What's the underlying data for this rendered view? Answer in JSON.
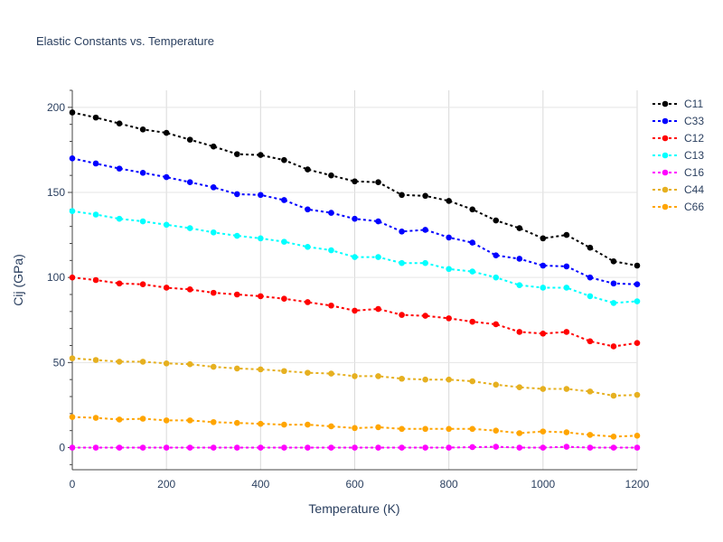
{
  "chart_data": {
    "type": "line",
    "title": "Elastic Constants vs. Temperature",
    "xlabel": "Temperature (K)",
    "ylabel": "Cij (GPa)",
    "xlim": [
      0,
      1200
    ],
    "ylim": [
      -13,
      210
    ],
    "xticks": [
      0,
      200,
      400,
      600,
      800,
      1000,
      1200
    ],
    "yticks": [
      0,
      50,
      100,
      150,
      200
    ],
    "grid": true,
    "legend_position": "top-right",
    "x": [
      0,
      50,
      100,
      150,
      200,
      250,
      300,
      350,
      400,
      450,
      500,
      550,
      600,
      650,
      700,
      750,
      800,
      850,
      900,
      950,
      1000,
      1050,
      1100,
      1150,
      1200
    ],
    "series": [
      {
        "name": "C11",
        "color": "#000000",
        "values": [
          197,
          194,
          190.5,
          187,
          185,
          181,
          177,
          172.5,
          172,
          169,
          163.5,
          160,
          156.5,
          156,
          148.5,
          148,
          145,
          140,
          133.5,
          129,
          123,
          125,
          117.5,
          109.5,
          107
        ]
      },
      {
        "name": "C33",
        "color": "#0000ff",
        "values": [
          170,
          167,
          164,
          161.5,
          159,
          156,
          153,
          149,
          148.5,
          145.5,
          140,
          138,
          134.5,
          133,
          127,
          128,
          123.5,
          120.5,
          113,
          111,
          107,
          106.5,
          100,
          96.5,
          96
        ]
      },
      {
        "name": "C12",
        "color": "#ff0000",
        "values": [
          100,
          98.5,
          96.5,
          96,
          94,
          93,
          91,
          90,
          89,
          87.5,
          85.5,
          83.5,
          80.5,
          81.5,
          78,
          77.5,
          76,
          74,
          72.5,
          68,
          67,
          68,
          62.5,
          59.5,
          61.5
        ]
      },
      {
        "name": "C13",
        "color": "#00ffff",
        "values": [
          139,
          137,
          134.5,
          133,
          131,
          129,
          126.5,
          124.5,
          123,
          121,
          118,
          116,
          112,
          112,
          108.5,
          108.5,
          105,
          103.5,
          100,
          95.5,
          94,
          94,
          89,
          85,
          86
        ]
      },
      {
        "name": "C16",
        "color": "#ff00ff",
        "values": [
          0,
          0,
          0,
          0,
          0,
          0,
          0,
          0,
          0,
          0,
          0,
          0,
          0,
          0,
          0,
          0,
          0,
          0.3,
          0.5,
          0,
          0,
          0.5,
          0,
          0,
          0
        ]
      },
      {
        "name": "C44",
        "color": "#e6b020",
        "values": [
          52.5,
          51.5,
          50.5,
          50.5,
          49.5,
          49,
          47.5,
          46.5,
          46,
          45,
          44,
          43.5,
          42,
          42,
          40.5,
          40,
          40,
          39,
          37,
          35.5,
          34.5,
          34.5,
          33,
          30.5,
          31
        ]
      },
      {
        "name": "C66",
        "color": "#ffa500",
        "values": [
          18,
          17.5,
          16.5,
          17,
          16,
          16,
          15,
          14.5,
          14,
          13.5,
          13.5,
          12.5,
          11.5,
          12,
          11,
          11,
          11,
          11,
          10,
          8.5,
          9.5,
          9,
          7.5,
          6.5,
          7
        ]
      }
    ]
  }
}
